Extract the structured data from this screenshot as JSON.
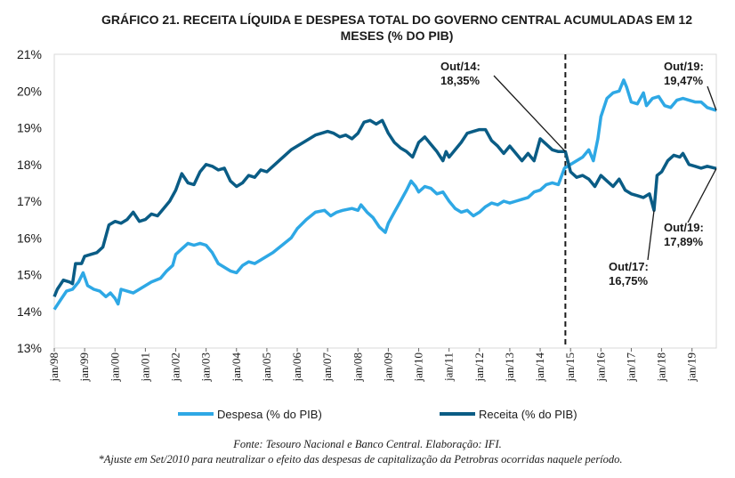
{
  "chart_data": {
    "type": "line",
    "title_line1": "GRÁFICO 21. RECEITA LÍQUIDA E DESPESA TOTAL DO GOVERNO CENTRAL ACUMULADAS EM 12",
    "title_line2": "MESES (% DO PIB)",
    "y_ticks": [
      "13%",
      "14%",
      "15%",
      "16%",
      "17%",
      "18%",
      "19%",
      "20%",
      "21%"
    ],
    "ylim": [
      13,
      21
    ],
    "x_start": 1998,
    "x_end": 2019.8,
    "x_ticks": [
      "jan/98",
      "jan/99",
      "jan/00",
      "jan/01",
      "jan/02",
      "jan/03",
      "jan/04",
      "jan/05",
      "jan/06",
      "jan/07",
      "jan/08",
      "jan/09",
      "jan/10",
      "jan/11",
      "jan/12",
      "jan/13",
      "jan/14",
      "jan/15",
      "jan/16",
      "jan/17",
      "jan/18",
      "jan/19"
    ],
    "vline_at": 2014.83,
    "series": [
      {
        "name": "Despesa (% do PIB)",
        "color": "#2ea8e5",
        "points": [
          [
            1998.0,
            14.05
          ],
          [
            1998.2,
            14.3
          ],
          [
            1998.4,
            14.55
          ],
          [
            1998.6,
            14.6
          ],
          [
            1998.8,
            14.8
          ],
          [
            1998.95,
            15.05
          ],
          [
            1999.1,
            14.7
          ],
          [
            1999.3,
            14.6
          ],
          [
            1999.5,
            14.55
          ],
          [
            1999.7,
            14.4
          ],
          [
            1999.85,
            14.5
          ],
          [
            2000.0,
            14.35
          ],
          [
            2000.1,
            14.2
          ],
          [
            2000.2,
            14.6
          ],
          [
            2000.4,
            14.55
          ],
          [
            2000.6,
            14.5
          ],
          [
            2000.8,
            14.6
          ],
          [
            2001.0,
            14.7
          ],
          [
            2001.2,
            14.8
          ],
          [
            2001.5,
            14.9
          ],
          [
            2001.7,
            15.1
          ],
          [
            2001.9,
            15.25
          ],
          [
            2002.0,
            15.55
          ],
          [
            2002.2,
            15.7
          ],
          [
            2002.4,
            15.85
          ],
          [
            2002.6,
            15.8
          ],
          [
            2002.8,
            15.85
          ],
          [
            2003.0,
            15.8
          ],
          [
            2003.2,
            15.6
          ],
          [
            2003.4,
            15.3
          ],
          [
            2003.6,
            15.2
          ],
          [
            2003.8,
            15.1
          ],
          [
            2004.0,
            15.05
          ],
          [
            2004.2,
            15.25
          ],
          [
            2004.4,
            15.35
          ],
          [
            2004.6,
            15.3
          ],
          [
            2004.8,
            15.4
          ],
          [
            2005.0,
            15.5
          ],
          [
            2005.2,
            15.6
          ],
          [
            2005.5,
            15.8
          ],
          [
            2005.8,
            16.0
          ],
          [
            2006.0,
            16.25
          ],
          [
            2006.3,
            16.5
          ],
          [
            2006.6,
            16.7
          ],
          [
            2006.9,
            16.75
          ],
          [
            2007.1,
            16.6
          ],
          [
            2007.3,
            16.7
          ],
          [
            2007.5,
            16.75
          ],
          [
            2007.8,
            16.8
          ],
          [
            2008.0,
            16.75
          ],
          [
            2008.1,
            16.9
          ],
          [
            2008.3,
            16.7
          ],
          [
            2008.5,
            16.55
          ],
          [
            2008.7,
            16.3
          ],
          [
            2008.9,
            16.15
          ],
          [
            2009.0,
            16.4
          ],
          [
            2009.2,
            16.7
          ],
          [
            2009.4,
            17.0
          ],
          [
            2009.6,
            17.3
          ],
          [
            2009.75,
            17.55
          ],
          [
            2009.9,
            17.4
          ],
          [
            2010.0,
            17.25
          ],
          [
            2010.2,
            17.4
          ],
          [
            2010.4,
            17.35
          ],
          [
            2010.6,
            17.2
          ],
          [
            2010.8,
            17.25
          ],
          [
            2011.0,
            17.0
          ],
          [
            2011.2,
            16.8
          ],
          [
            2011.4,
            16.7
          ],
          [
            2011.6,
            16.75
          ],
          [
            2011.8,
            16.6
          ],
          [
            2012.0,
            16.7
          ],
          [
            2012.2,
            16.85
          ],
          [
            2012.4,
            16.95
          ],
          [
            2012.6,
            16.9
          ],
          [
            2012.8,
            17.0
          ],
          [
            2013.0,
            16.95
          ],
          [
            2013.2,
            17.0
          ],
          [
            2013.4,
            17.05
          ],
          [
            2013.6,
            17.1
          ],
          [
            2013.8,
            17.25
          ],
          [
            2014.0,
            17.3
          ],
          [
            2014.2,
            17.45
          ],
          [
            2014.4,
            17.5
          ],
          [
            2014.6,
            17.45
          ],
          [
            2014.8,
            17.9
          ],
          [
            2015.0,
            18.0
          ],
          [
            2015.2,
            18.1
          ],
          [
            2015.4,
            18.2
          ],
          [
            2015.6,
            18.4
          ],
          [
            2015.75,
            18.1
          ],
          [
            2015.9,
            18.7
          ],
          [
            2016.0,
            19.3
          ],
          [
            2016.2,
            19.8
          ],
          [
            2016.4,
            19.95
          ],
          [
            2016.6,
            20.0
          ],
          [
            2016.75,
            20.3
          ],
          [
            2016.85,
            20.1
          ],
          [
            2017.0,
            19.7
          ],
          [
            2017.2,
            19.65
          ],
          [
            2017.4,
            19.95
          ],
          [
            2017.5,
            19.6
          ],
          [
            2017.7,
            19.8
          ],
          [
            2017.9,
            19.85
          ],
          [
            2018.1,
            19.6
          ],
          [
            2018.3,
            19.55
          ],
          [
            2018.5,
            19.75
          ],
          [
            2018.7,
            19.8
          ],
          [
            2018.9,
            19.75
          ],
          [
            2019.1,
            19.7
          ],
          [
            2019.3,
            19.7
          ],
          [
            2019.5,
            19.55
          ],
          [
            2019.8,
            19.47
          ]
        ]
      },
      {
        "name": "Receita (% do PIB)",
        "color": "#0a5c85",
        "points": [
          [
            1998.0,
            14.4
          ],
          [
            1998.1,
            14.6
          ],
          [
            1998.3,
            14.85
          ],
          [
            1998.5,
            14.8
          ],
          [
            1998.6,
            14.75
          ],
          [
            1998.7,
            15.3
          ],
          [
            1998.9,
            15.3
          ],
          [
            1999.0,
            15.5
          ],
          [
            1999.2,
            15.55
          ],
          [
            1999.4,
            15.6
          ],
          [
            1999.6,
            15.75
          ],
          [
            1999.8,
            16.35
          ],
          [
            2000.0,
            16.45
          ],
          [
            2000.2,
            16.4
          ],
          [
            2000.4,
            16.5
          ],
          [
            2000.6,
            16.7
          ],
          [
            2000.8,
            16.45
          ],
          [
            2001.0,
            16.5
          ],
          [
            2001.2,
            16.65
          ],
          [
            2001.4,
            16.6
          ],
          [
            2001.6,
            16.8
          ],
          [
            2001.8,
            17.0
          ],
          [
            2002.0,
            17.3
          ],
          [
            2002.2,
            17.75
          ],
          [
            2002.4,
            17.5
          ],
          [
            2002.6,
            17.45
          ],
          [
            2002.8,
            17.8
          ],
          [
            2003.0,
            18.0
          ],
          [
            2003.2,
            17.95
          ],
          [
            2003.4,
            17.85
          ],
          [
            2003.6,
            17.9
          ],
          [
            2003.8,
            17.55
          ],
          [
            2004.0,
            17.4
          ],
          [
            2004.2,
            17.5
          ],
          [
            2004.4,
            17.7
          ],
          [
            2004.6,
            17.65
          ],
          [
            2004.8,
            17.85
          ],
          [
            2005.0,
            17.8
          ],
          [
            2005.2,
            17.95
          ],
          [
            2005.4,
            18.1
          ],
          [
            2005.6,
            18.25
          ],
          [
            2005.8,
            18.4
          ],
          [
            2006.0,
            18.5
          ],
          [
            2006.2,
            18.6
          ],
          [
            2006.4,
            18.7
          ],
          [
            2006.6,
            18.8
          ],
          [
            2006.8,
            18.85
          ],
          [
            2007.0,
            18.9
          ],
          [
            2007.2,
            18.85
          ],
          [
            2007.4,
            18.75
          ],
          [
            2007.6,
            18.8
          ],
          [
            2007.8,
            18.7
          ],
          [
            2008.0,
            18.85
          ],
          [
            2008.2,
            19.15
          ],
          [
            2008.4,
            19.2
          ],
          [
            2008.6,
            19.1
          ],
          [
            2008.8,
            19.2
          ],
          [
            2009.0,
            18.85
          ],
          [
            2009.2,
            18.6
          ],
          [
            2009.4,
            18.45
          ],
          [
            2009.6,
            18.35
          ],
          [
            2009.8,
            18.2
          ],
          [
            2010.0,
            18.6
          ],
          [
            2010.2,
            18.75
          ],
          [
            2010.4,
            18.55
          ],
          [
            2010.6,
            18.35
          ],
          [
            2010.8,
            18.1
          ],
          [
            2010.9,
            18.35
          ],
          [
            2011.0,
            18.2
          ],
          [
            2011.2,
            18.4
          ],
          [
            2011.4,
            18.6
          ],
          [
            2011.6,
            18.85
          ],
          [
            2011.8,
            18.9
          ],
          [
            2012.0,
            18.95
          ],
          [
            2012.2,
            18.95
          ],
          [
            2012.4,
            18.65
          ],
          [
            2012.6,
            18.5
          ],
          [
            2012.8,
            18.3
          ],
          [
            2013.0,
            18.5
          ],
          [
            2013.2,
            18.3
          ],
          [
            2013.4,
            18.1
          ],
          [
            2013.6,
            18.3
          ],
          [
            2013.8,
            18.1
          ],
          [
            2014.0,
            18.7
          ],
          [
            2014.2,
            18.55
          ],
          [
            2014.4,
            18.4
          ],
          [
            2014.6,
            18.35
          ],
          [
            2014.83,
            18.35
          ],
          [
            2015.0,
            17.8
          ],
          [
            2015.2,
            17.65
          ],
          [
            2015.4,
            17.7
          ],
          [
            2015.6,
            17.6
          ],
          [
            2015.8,
            17.4
          ],
          [
            2016.0,
            17.7
          ],
          [
            2016.2,
            17.55
          ],
          [
            2016.4,
            17.4
          ],
          [
            2016.6,
            17.6
          ],
          [
            2016.8,
            17.3
          ],
          [
            2017.0,
            17.2
          ],
          [
            2017.2,
            17.15
          ],
          [
            2017.4,
            17.1
          ],
          [
            2017.6,
            17.2
          ],
          [
            2017.75,
            16.75
          ],
          [
            2017.85,
            17.7
          ],
          [
            2018.0,
            17.8
          ],
          [
            2018.2,
            18.1
          ],
          [
            2018.4,
            18.25
          ],
          [
            2018.6,
            18.2
          ],
          [
            2018.7,
            18.3
          ],
          [
            2018.9,
            18.0
          ],
          [
            2019.1,
            17.95
          ],
          [
            2019.3,
            17.9
          ],
          [
            2019.5,
            17.95
          ],
          [
            2019.8,
            17.89
          ]
        ]
      }
    ],
    "annotations": [
      {
        "line1": "Out/14:",
        "line2": "18,35%",
        "x": 2014.83,
        "y": 18.35
      },
      {
        "line1": "Out/19:",
        "line2": "19,47%",
        "x": 2019.8,
        "y": 19.47
      },
      {
        "line1": "Out/17:",
        "line2": "16,75%",
        "x": 2017.75,
        "y": 16.75
      },
      {
        "line1": "Out/19:",
        "line2": "17,89%",
        "x": 2019.8,
        "y": 17.89
      }
    ],
    "legend": [
      "Despesa (% do PIB)",
      "Receita (% do PIB)"
    ],
    "source": "Fonte: Tesouro Nacional e Banco Central. Elaboração: IFI.",
    "note": "*Ajuste em Set/2010 para neutralizar o efeito das despesas de capitalização da Petrobras ocorridas naquele período."
  }
}
